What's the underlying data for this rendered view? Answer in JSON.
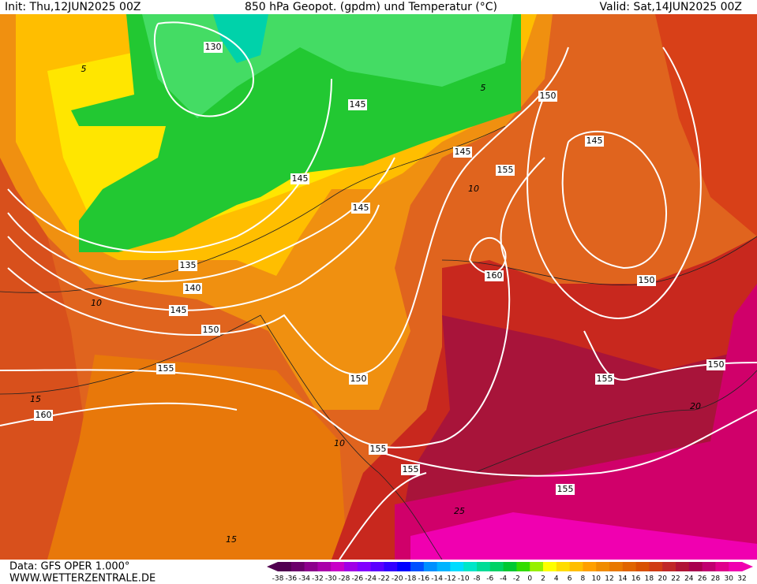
{
  "header": {
    "init": "Init: Thu,12JUN2025 00Z",
    "title": "850 hPa Geopot. (gpdm) und Temperatur (°C)",
    "valid": "Valid: Sat,14JUN2025 00Z"
  },
  "footer": {
    "source": "Data: GFS OPER 1.000°",
    "website": "WWW.WETTERZENTRALE.DE"
  },
  "colorbar": {
    "ticks": [
      -38,
      -36,
      -34,
      -32,
      -30,
      -28,
      -26,
      -24,
      -22,
      -20,
      -18,
      -16,
      -14,
      -12,
      -10,
      -8,
      -6,
      -4,
      -2,
      0,
      2,
      4,
      6,
      8,
      10,
      12,
      14,
      16,
      18,
      20,
      22,
      24,
      26,
      28,
      30,
      32
    ],
    "colors": [
      "#500050",
      "#6a006a",
      "#8c008c",
      "#aa00aa",
      "#c800c8",
      "#a000e6",
      "#8200ff",
      "#5a00ff",
      "#3200ff",
      "#0000ff",
      "#0050ff",
      "#0090ff",
      "#00b4ff",
      "#00dcff",
      "#00e6c8",
      "#00dc96",
      "#00d264",
      "#00c832",
      "#32dc00",
      "#96f000",
      "#ffff00",
      "#ffdc00",
      "#ffbe00",
      "#ffa000",
      "#f08c00",
      "#e87800",
      "#e06400",
      "#d85000",
      "#d03c14",
      "#c02828",
      "#b01436",
      "#a8004e",
      "#c00070",
      "#e0008c",
      "#f000b0"
    ]
  },
  "map": {
    "height_labels": [
      "130",
      "135",
      "140",
      "145",
      "150",
      "155",
      "160",
      "145",
      "145",
      "145",
      "150",
      "155",
      "155",
      "155",
      "155",
      "150",
      "150",
      "160",
      "155",
      "145",
      "150",
      "145"
    ],
    "temperature_labels": [
      "10",
      "15",
      "10",
      "15",
      "25",
      "20",
      "5",
      "5",
      "10"
    ]
  }
}
